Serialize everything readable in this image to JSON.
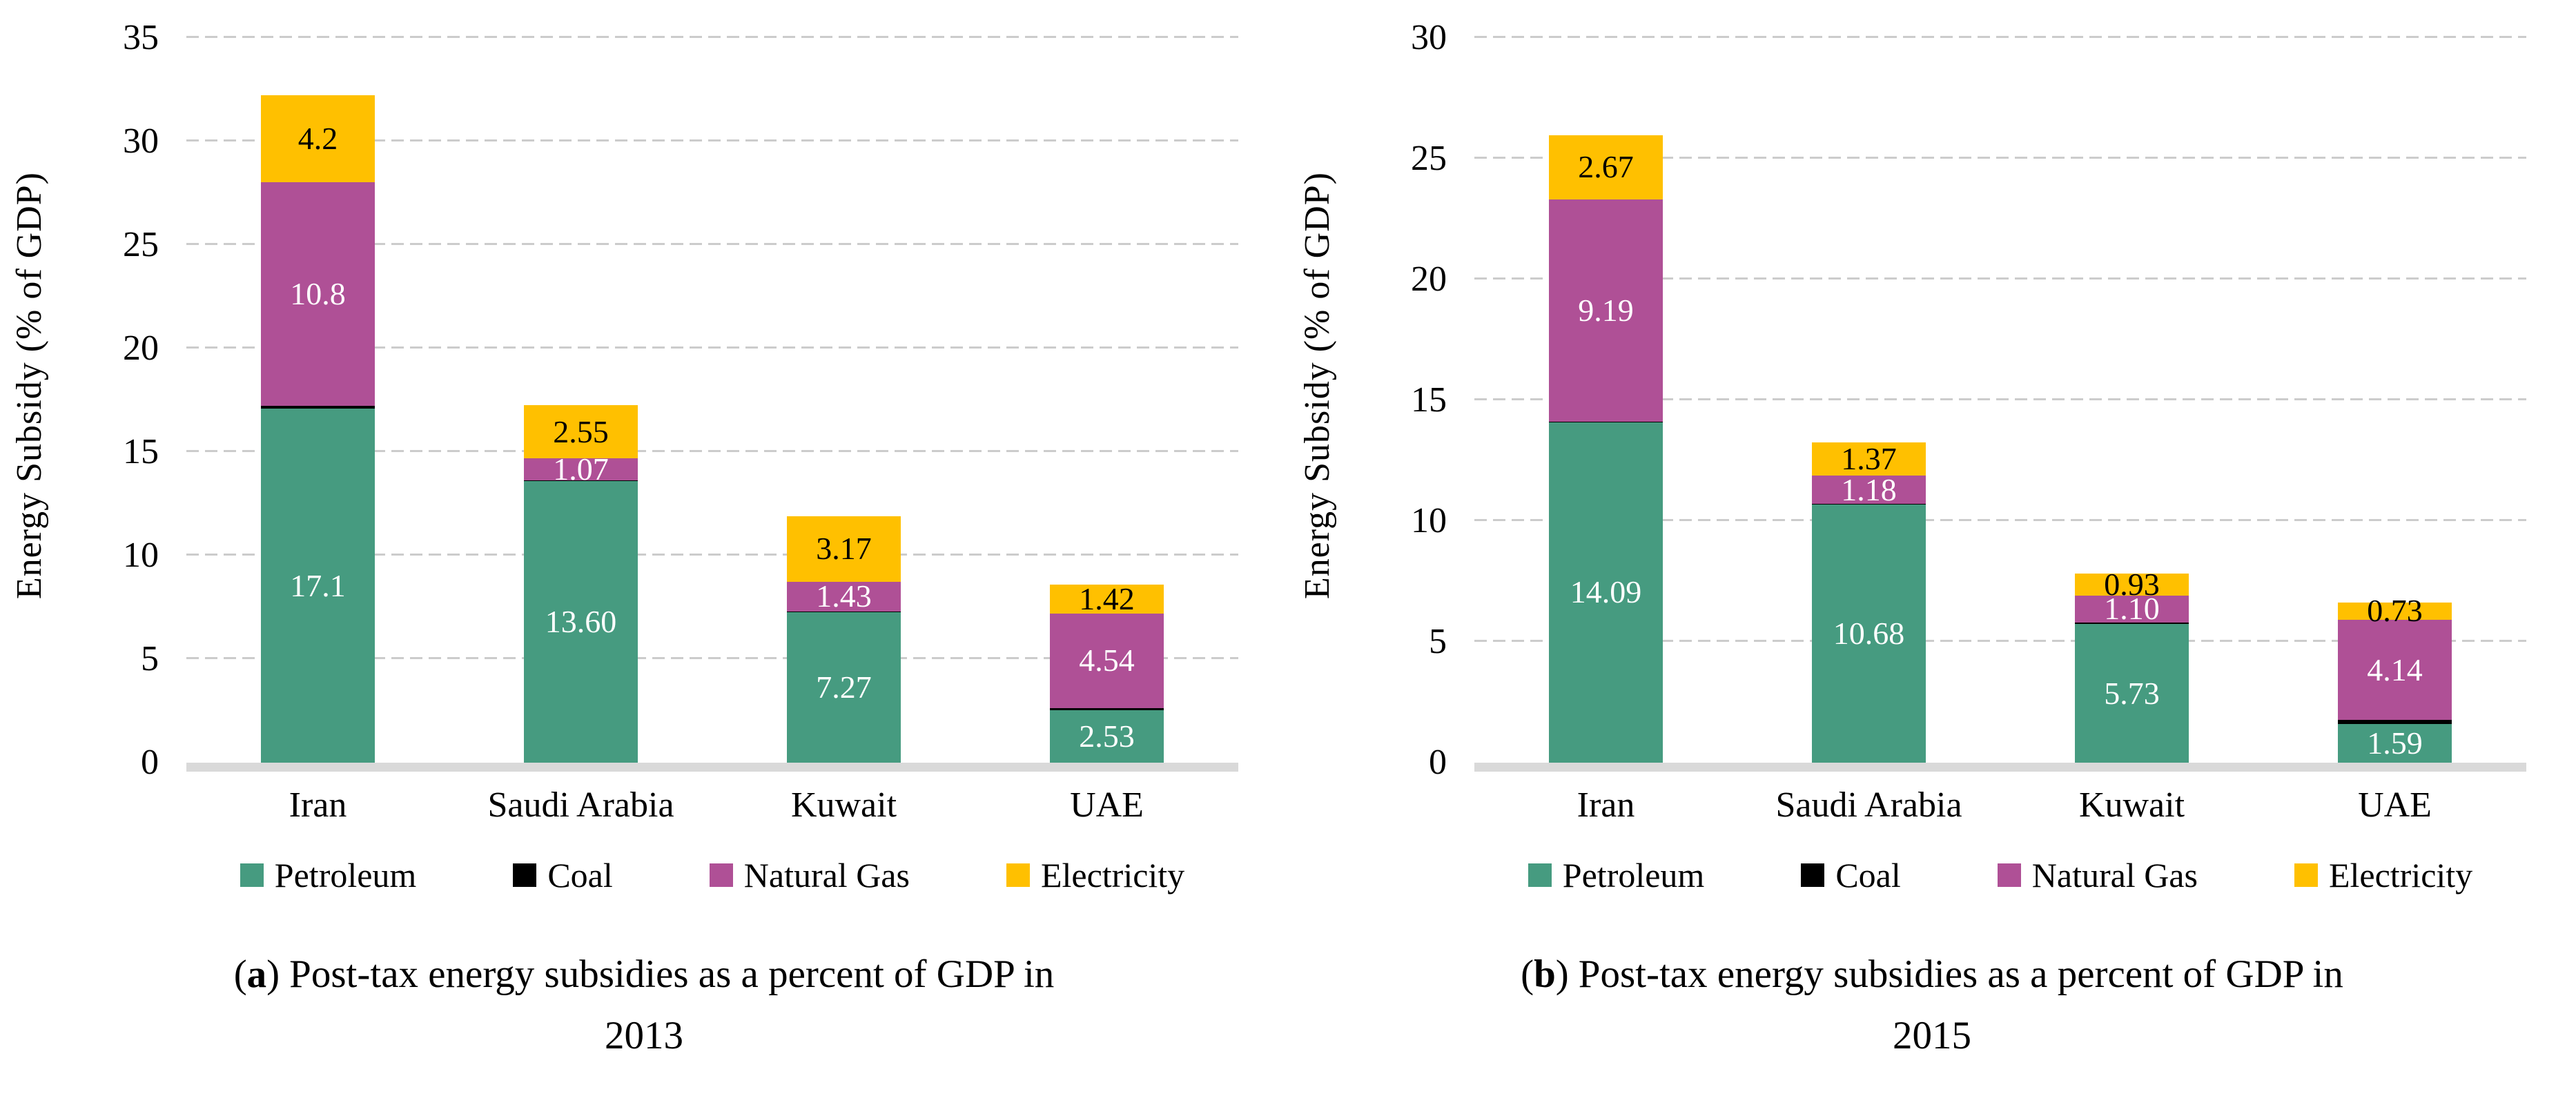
{
  "figure": {
    "y_axis_title": "Energy Subsidy (% of GDP)",
    "legend": {
      "items": [
        {
          "label": "Petroleum",
          "color": "#469B80"
        },
        {
          "label": "Coal",
          "color": "#000000"
        },
        {
          "label": "Natural Gas",
          "color": "#AF5096"
        },
        {
          "label": "Electricity",
          "color": "#FFC000"
        }
      ]
    },
    "captions": [
      {
        "open": "(",
        "letter": "a",
        "close": ")",
        "body": "Post-tax energy subsidies as a percent of GDP in",
        "year": "2013"
      },
      {
        "open": "(",
        "letter": "b",
        "close": ")",
        "body": "Post-tax energy subsidies as a percent of GDP in",
        "year": "2015"
      }
    ]
  },
  "colors": {
    "petroleum": "#469B80",
    "coal": "#000000",
    "natural_gas": "#AF5096",
    "electricity": "#FFC000",
    "gridline": "#CCCCCC",
    "axis_strip": "#D9D9D9",
    "label_on_dark": "#FFFFFF",
    "label_on_light": "#000000"
  },
  "chart_data": [
    {
      "type": "bar",
      "stacked": true,
      "title": "(a) Post-tax energy subsidies as a percent of GDP in 2013",
      "categories": [
        "Iran",
        "Saudi Arabia",
        "Kuwait",
        "UAE"
      ],
      "series": [
        {
          "name": "Petroleum",
          "color": "#469B80",
          "label_color": "#FFFFFF",
          "values": [
            17.1,
            13.6,
            7.27,
            2.53
          ],
          "labels": [
            "17.1",
            "13.60",
            "7.27",
            "2.53"
          ]
        },
        {
          "name": "Coal",
          "color": "#000000",
          "label_color": "#FFFFFF",
          "values": [
            0.12,
            0.03,
            0.03,
            0.12
          ],
          "labels": [
            "",
            "",
            "",
            ""
          ]
        },
        {
          "name": "Natural Gas",
          "color": "#AF5096",
          "label_color": "#FFFFFF",
          "values": [
            10.8,
            1.07,
            1.43,
            4.54
          ],
          "labels": [
            "10.8",
            "1.07",
            "1.43",
            "4.54"
          ]
        },
        {
          "name": "Electricity",
          "color": "#FFC000",
          "label_color": "#000000",
          "values": [
            4.2,
            2.55,
            3.17,
            1.42
          ],
          "labels": [
            "4.2",
            "2.55",
            "3.17",
            "1.42"
          ]
        }
      ],
      "xlabel": "",
      "ylabel": "Energy Subsidy (% of GDP)",
      "ylim": [
        0,
        35
      ],
      "yticks": [
        0,
        5,
        10,
        15,
        20,
        25,
        30,
        35
      ],
      "grid": true,
      "legend_position": "bottom"
    },
    {
      "type": "bar",
      "stacked": true,
      "title": "(b) Post-tax energy subsidies as a percent of GDP in 2015",
      "categories": [
        "Iran",
        "Saudi Arabia",
        "Kuwait",
        "UAE"
      ],
      "series": [
        {
          "name": "Petroleum",
          "color": "#469B80",
          "label_color": "#FFFFFF",
          "values": [
            14.09,
            10.68,
            5.73,
            1.59
          ],
          "labels": [
            "14.09",
            "10.68",
            "5.73",
            "1.59"
          ]
        },
        {
          "name": "Coal",
          "color": "#000000",
          "label_color": "#FFFFFF",
          "values": [
            0.03,
            0.03,
            0.08,
            0.18
          ],
          "labels": [
            "",
            "",
            "",
            ""
          ]
        },
        {
          "name": "Natural Gas",
          "color": "#AF5096",
          "label_color": "#FFFFFF",
          "values": [
            9.19,
            1.18,
            1.1,
            4.14
          ],
          "labels": [
            "9.19",
            "1.18",
            "1.10",
            "4.14"
          ]
        },
        {
          "name": "Electricity",
          "color": "#FFC000",
          "label_color": "#000000",
          "values": [
            2.67,
            1.37,
            0.93,
            0.73
          ],
          "labels": [
            "2.67",
            "1.37",
            "0.93",
            "0.73"
          ]
        }
      ],
      "xlabel": "",
      "ylabel": "Energy Subsidy (% of GDP)",
      "ylim": [
        0,
        30
      ],
      "yticks": [
        0,
        5,
        10,
        15,
        20,
        25,
        30
      ],
      "grid": true,
      "legend_position": "bottom"
    }
  ]
}
